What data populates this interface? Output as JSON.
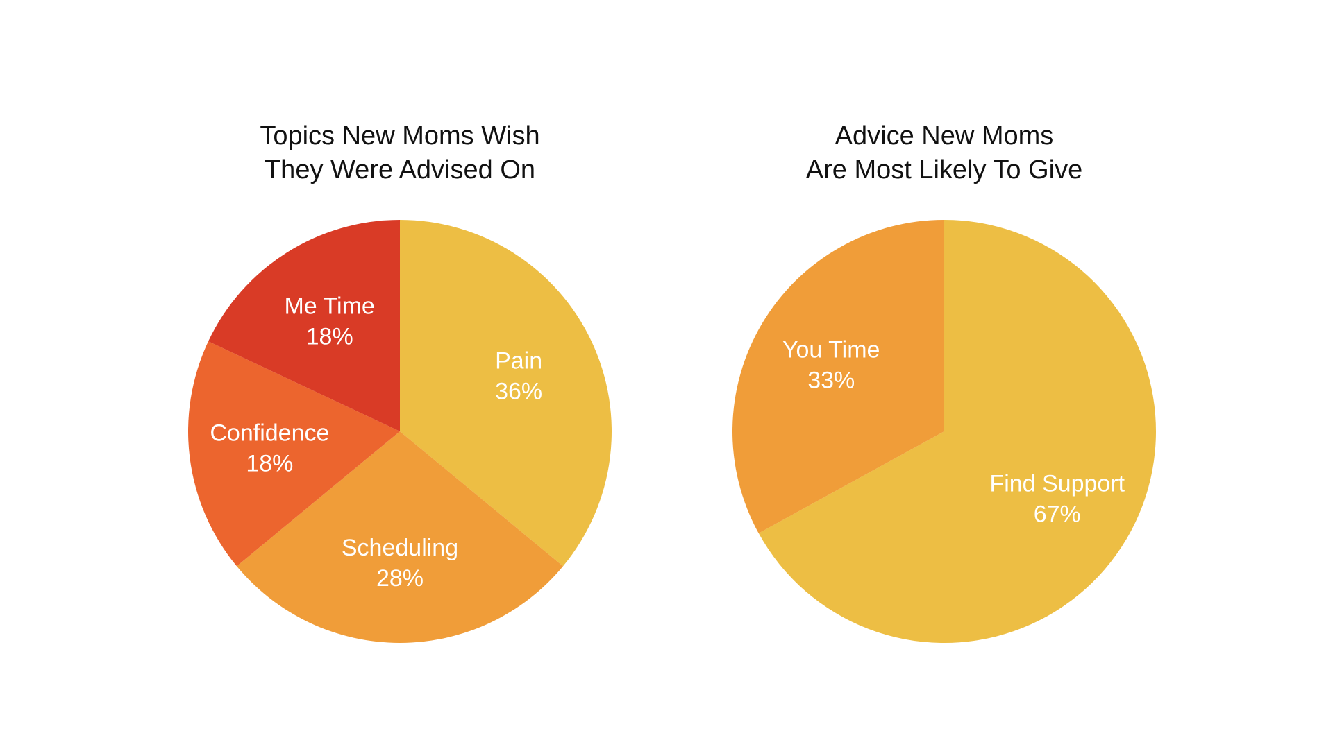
{
  "chart_data": [
    {
      "type": "pie",
      "title": [
        "Topics New Moms Wish",
        "They Were Advised On"
      ],
      "slices": [
        {
          "label": "Pain",
          "value": 36,
          "value_label": "36%",
          "color": "#EDBE44"
        },
        {
          "label": "Scheduling",
          "value": 28,
          "value_label": "28%",
          "color": "#F09D39"
        },
        {
          "label": "Confidence",
          "value": 18,
          "value_label": "18%",
          "color": "#EC652E"
        },
        {
          "label": "Me Time",
          "value": 18,
          "value_label": "18%",
          "color": "#D93B26"
        }
      ]
    },
    {
      "type": "pie",
      "title": [
        "Advice New Moms",
        "Are Most Likely To Give"
      ],
      "slices": [
        {
          "label": "Find Support",
          "value": 67,
          "value_label": "67%",
          "color": "#EDBE44"
        },
        {
          "label": "You Time",
          "value": 33,
          "value_label": "33%",
          "color": "#F09D39"
        }
      ]
    }
  ]
}
